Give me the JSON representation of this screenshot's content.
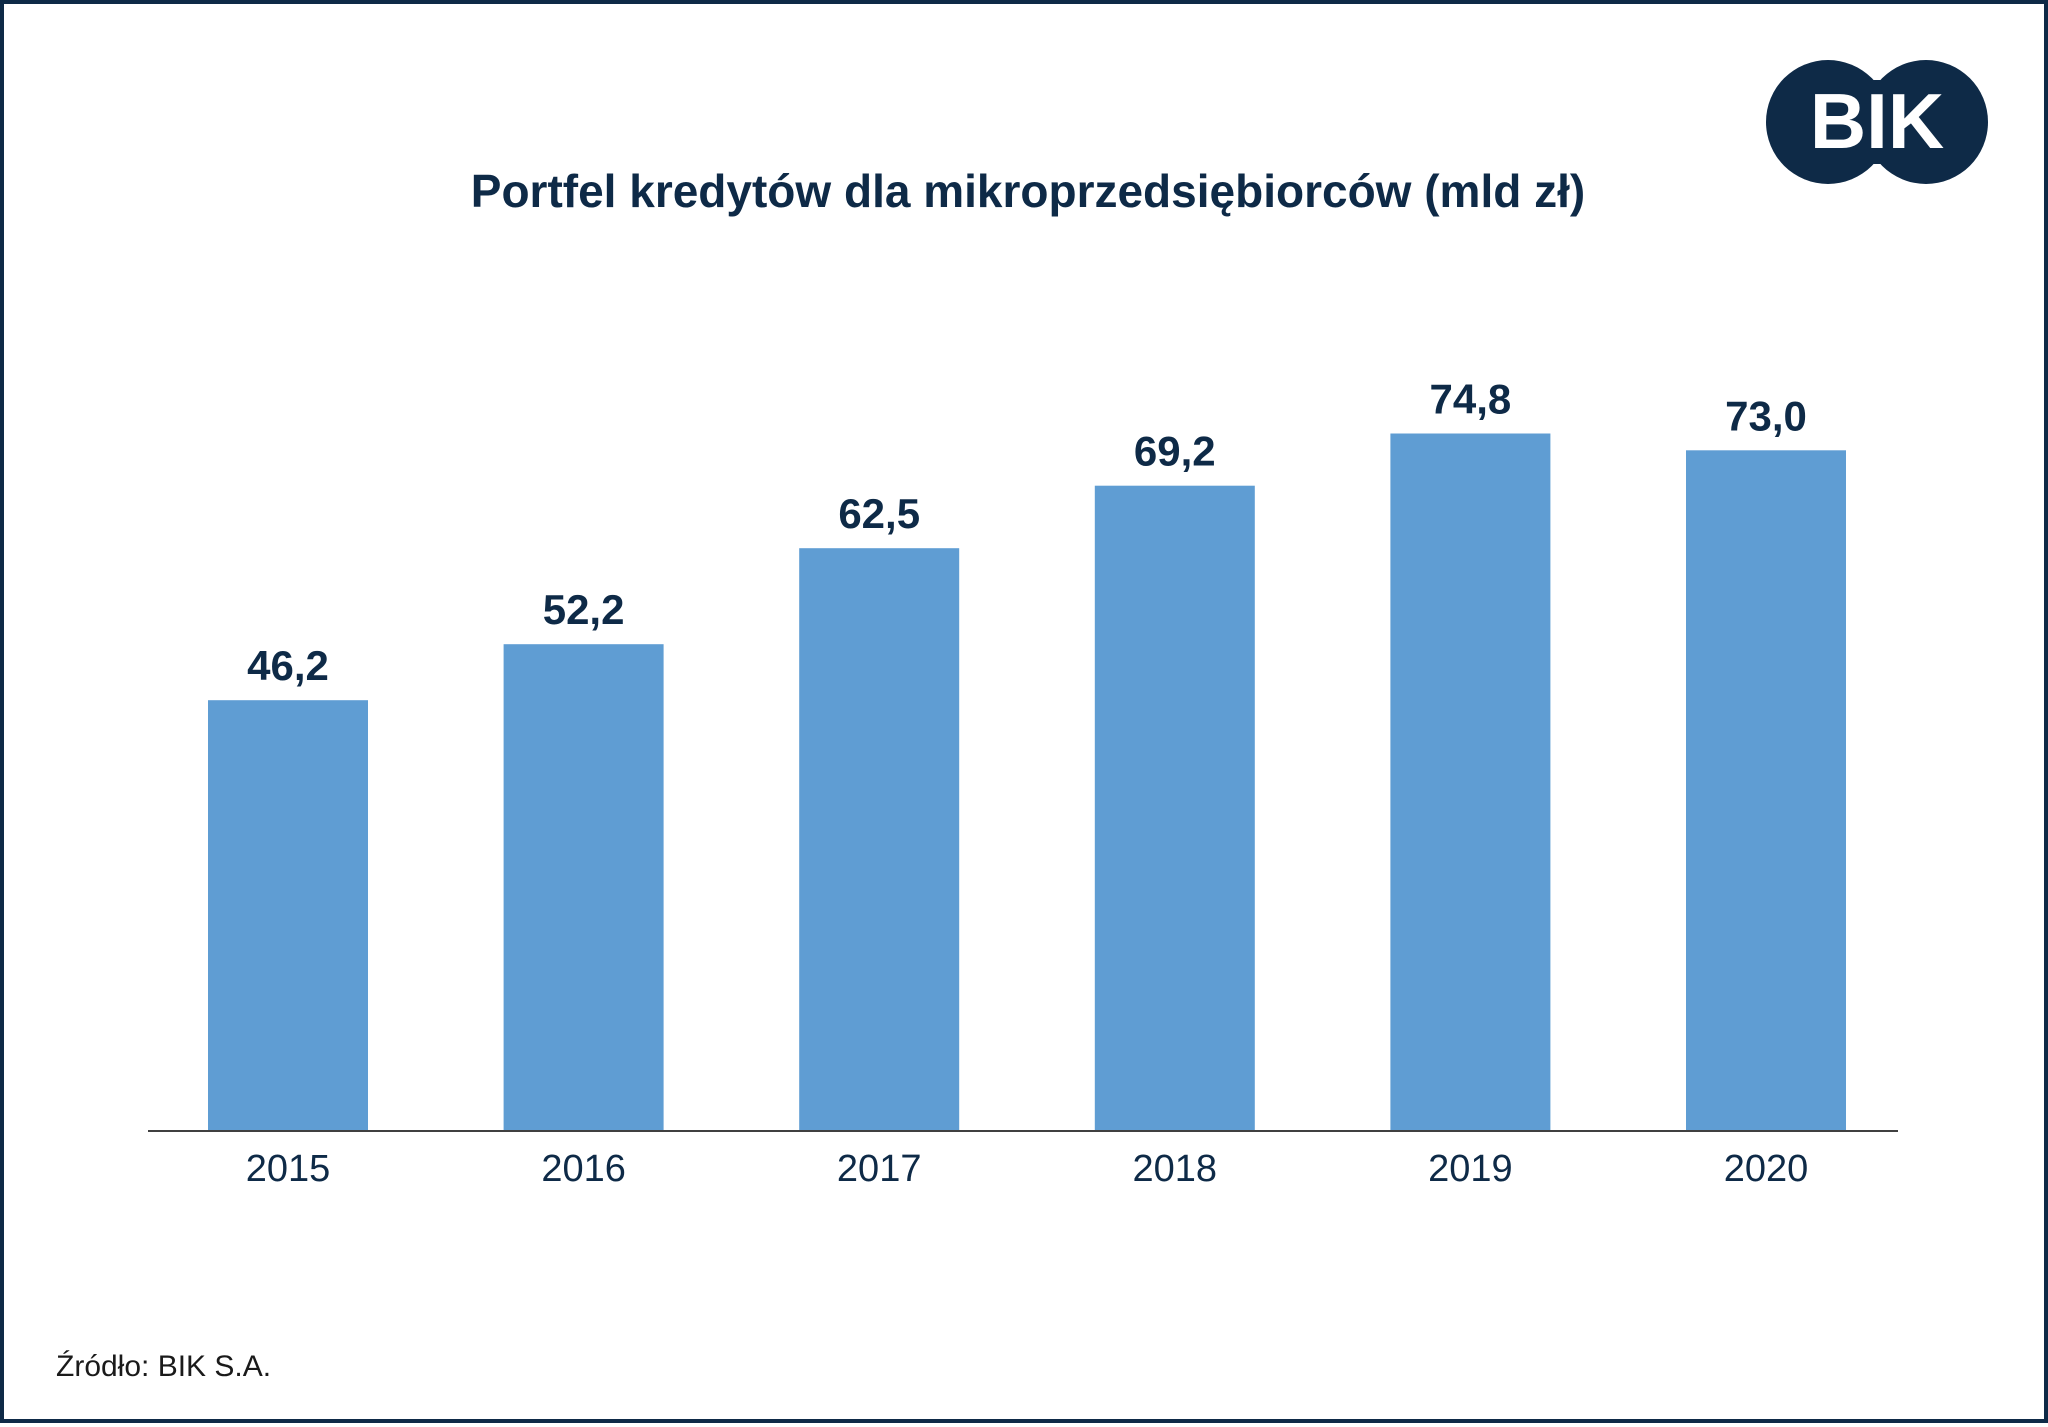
{
  "colors": {
    "border": "#0e2a47",
    "bar": "#5f9dd3",
    "text": "#0e2a47",
    "logo_bg": "#0e2a47",
    "logo_text": "#ffffff"
  },
  "logo": {
    "text": "BIK"
  },
  "source": "Źródło: BIK S.A.",
  "chart_data": {
    "type": "bar",
    "title": "Portfel kredytów dla mikroprzedsiębiorców (mld zł)",
    "categories": [
      "2015",
      "2016",
      "2017",
      "2018",
      "2019",
      "2020"
    ],
    "values": [
      46.2,
      52.2,
      62.5,
      69.2,
      74.8,
      73.0
    ],
    "value_labels": [
      "46,2",
      "52,2",
      "62,5",
      "69,2",
      "74,8",
      "73,0"
    ],
    "xlabel": "",
    "ylabel": "",
    "ylim": [
      0,
      100
    ],
    "grid": false,
    "legend": "none"
  }
}
